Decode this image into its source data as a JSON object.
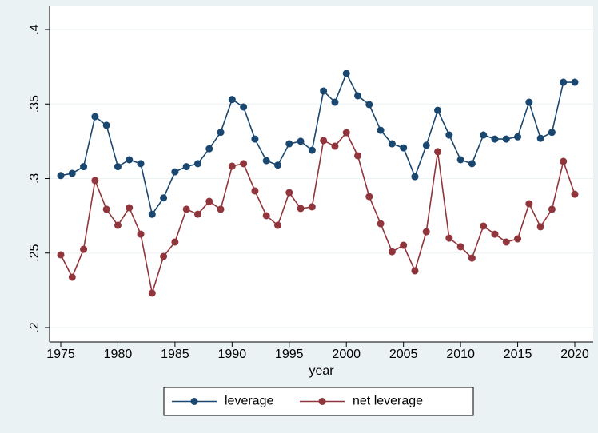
{
  "chart_data": {
    "type": "line",
    "x_label": "year",
    "x": [
      1975,
      1976,
      1977,
      1978,
      1979,
      1980,
      1981,
      1982,
      1983,
      1984,
      1985,
      1986,
      1987,
      1988,
      1989,
      1990,
      1991,
      1992,
      1993,
      1994,
      1995,
      1996,
      1997,
      1998,
      1999,
      2000,
      2001,
      2002,
      2003,
      2004,
      2005,
      2006,
      2007,
      2008,
      2009,
      2010,
      2011,
      2012,
      2013,
      2014,
      2015,
      2016,
      2017,
      2018,
      2019,
      2020
    ],
    "series": [
      {
        "name": "leverage",
        "color": "#1a476f",
        "values": [
          0.302,
          0.3035,
          0.308,
          0.3415,
          0.3357,
          0.308,
          0.3126,
          0.31,
          0.276,
          0.287,
          0.3045,
          0.308,
          0.31,
          0.32,
          0.331,
          0.353,
          0.348,
          0.3265,
          0.312,
          0.309,
          0.3233,
          0.325,
          0.319,
          0.3587,
          0.3512,
          0.3705,
          0.3555,
          0.3496,
          0.3324,
          0.3233,
          0.3206,
          0.3013,
          0.3223,
          0.3458,
          0.3292,
          0.3126,
          0.31,
          0.3292,
          0.3265,
          0.3265,
          0.328,
          0.3512,
          0.327,
          0.331,
          0.3646,
          0.3646
        ]
      },
      {
        "name": "net leverage",
        "color": "#90353b",
        "values": [
          0.2488,
          0.2338,
          0.2525,
          0.2987,
          0.2794,
          0.2686,
          0.2804,
          0.2627,
          0.2231,
          0.2477,
          0.2574,
          0.2794,
          0.2761,
          0.2847,
          0.2794,
          0.3083,
          0.31,
          0.2917,
          0.2751,
          0.2686,
          0.2906,
          0.2799,
          0.281,
          0.3255,
          0.3217,
          0.3308,
          0.3153,
          0.2879,
          0.2697,
          0.2509,
          0.2552,
          0.2381,
          0.2643,
          0.318,
          0.26,
          0.2542,
          0.2466,
          0.2681,
          0.2627,
          0.2574,
          0.2595,
          0.2831,
          0.2676,
          0.2794,
          0.3115,
          0.2895
        ]
      }
    ],
    "xlim": [
      1975,
      2020
    ],
    "xticks": [
      1975,
      1980,
      1985,
      1990,
      1995,
      2000,
      2005,
      2010,
      2015,
      2020
    ],
    "ylim": [
      0.2,
      0.4
    ],
    "yticks": [
      {
        "value": 0.2,
        "label": ".2"
      },
      {
        "value": 0.25,
        "label": ".25"
      },
      {
        "value": 0.3,
        "label": ".3"
      },
      {
        "value": 0.35,
        "label": ".35"
      },
      {
        "value": 0.4,
        "label": ".4"
      }
    ],
    "grid": true,
    "legend": "bottom"
  }
}
